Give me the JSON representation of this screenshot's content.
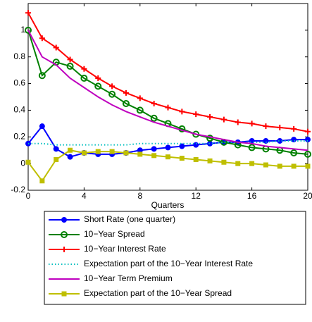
{
  "chart_data": {
    "type": "line",
    "x_label": "Quarters",
    "x": [
      0,
      1,
      2,
      3,
      4,
      5,
      6,
      7,
      8,
      9,
      10,
      11,
      12,
      13,
      14,
      15,
      16,
      17,
      18,
      19,
      20
    ],
    "xlim": [
      0,
      20
    ],
    "xticks": [
      0,
      4,
      8,
      12,
      16,
      20
    ],
    "ylim": [
      -0.2,
      1.2
    ],
    "yticks": [
      -0.2,
      0,
      0.2,
      0.4,
      0.6,
      0.8,
      1
    ],
    "legend": "bottom",
    "series": [
      {
        "name": "Short Rate (one quarter)",
        "color": "#0000ff",
        "marker": "filled-circle",
        "line": "solid",
        "values": [
          0.15,
          0.28,
          0.11,
          0.05,
          0.08,
          0.07,
          0.07,
          0.08,
          0.1,
          0.11,
          0.12,
          0.13,
          0.14,
          0.15,
          0.16,
          0.16,
          0.17,
          0.17,
          0.17,
          0.18,
          0.18
        ]
      },
      {
        "name": "10−Year Spread",
        "color": "#008000",
        "marker": "open-circle",
        "line": "solid",
        "values": [
          1.0,
          0.66,
          0.76,
          0.73,
          0.64,
          0.58,
          0.52,
          0.45,
          0.4,
          0.34,
          0.3,
          0.26,
          0.22,
          0.19,
          0.16,
          0.14,
          0.12,
          0.11,
          0.1,
          0.08,
          0.07
        ]
      },
      {
        "name": "10−Year Interest Rate",
        "color": "#ff0000",
        "marker": "plus",
        "line": "solid",
        "values": [
          1.13,
          0.94,
          0.87,
          0.78,
          0.71,
          0.64,
          0.58,
          0.53,
          0.49,
          0.45,
          0.42,
          0.39,
          0.37,
          0.35,
          0.33,
          0.31,
          0.3,
          0.28,
          0.27,
          0.26,
          0.24
        ]
      },
      {
        "name": "Expectation part of the 10−Year Interest Rate",
        "color": "#00bfbf",
        "marker": "none",
        "line": "dotted",
        "values": [
          0.15,
          0.15,
          0.14,
          0.14,
          0.14,
          0.14,
          0.14,
          0.14,
          0.15,
          0.15,
          0.15,
          0.15,
          0.15,
          0.15,
          0.16,
          0.16,
          0.16,
          0.16,
          0.17,
          0.17,
          0.17
        ]
      },
      {
        "name": "10−Year Term Premium",
        "color": "#bf00bf",
        "marker": "none",
        "line": "solid",
        "values": [
          1.0,
          0.8,
          0.74,
          0.64,
          0.57,
          0.5,
          0.44,
          0.39,
          0.35,
          0.31,
          0.28,
          0.25,
          0.22,
          0.2,
          0.18,
          0.16,
          0.15,
          0.13,
          0.12,
          0.11,
          0.1
        ]
      },
      {
        "name": "Expectation part of the 10−Year Spread",
        "color": "#bfbf00",
        "marker": "filled-square",
        "line": "solid",
        "values": [
          0.01,
          -0.13,
          0.03,
          0.1,
          0.08,
          0.09,
          0.09,
          0.08,
          0.07,
          0.06,
          0.05,
          0.04,
          0.03,
          0.02,
          0.01,
          0.0,
          0.0,
          -0.01,
          -0.02,
          -0.02,
          -0.02
        ]
      }
    ]
  }
}
